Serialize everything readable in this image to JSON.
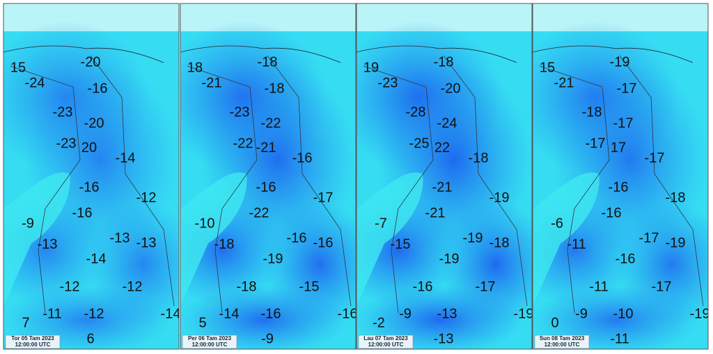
{
  "panels": [
    {
      "date": "Tor 05 Tam 2023",
      "time": "12:00:00 UTC",
      "labels": [
        "15",
        "-20",
        "-24",
        "-16",
        "-23",
        "-20",
        "-23",
        "20",
        "-14",
        "-16",
        "-12",
        "-16",
        "-9",
        "-13",
        "-13",
        "-13",
        "-14",
        "-12",
        "-12",
        "-11",
        "-12",
        "-14",
        "7",
        "6"
      ]
    },
    {
      "date": "Per 06 Tam 2023",
      "time": "12:00:00 UTC",
      "labels": [
        "18",
        "-18",
        "-21",
        "-18",
        "-23",
        "-22",
        "-22",
        "-21",
        "-16",
        "-16",
        "-17",
        "-22",
        "-10",
        "-18",
        "-16",
        "-16",
        "-19",
        "-18",
        "-15",
        "-14",
        "-16",
        "-16",
        "5",
        "-9"
      ]
    },
    {
      "date": "Lau 07 Tam 2023",
      "time": "12:00:00 UTC",
      "labels": [
        "19",
        "-18",
        "-23",
        "-20",
        "-28",
        "-24",
        "-25",
        "22",
        "-18",
        "-21",
        "-19",
        "-21",
        "-7",
        "-15",
        "-19",
        "-18",
        "-19",
        "-16",
        "-17",
        "-9",
        "-13",
        "-19",
        "-2",
        "-13"
      ]
    },
    {
      "date": "Sun 08 Tam 2023",
      "time": "12:00:00 UTC",
      "labels": [
        "15",
        "-19",
        "-21",
        "-17",
        "-18",
        "-17",
        "-17",
        "17",
        "-17",
        "-16",
        "-18",
        "-16",
        "-6",
        "-11",
        "-17",
        "-19",
        "-16",
        "-11",
        "-17",
        "-9",
        "-10",
        "-19",
        "0",
        "-11"
      ]
    }
  ]
}
